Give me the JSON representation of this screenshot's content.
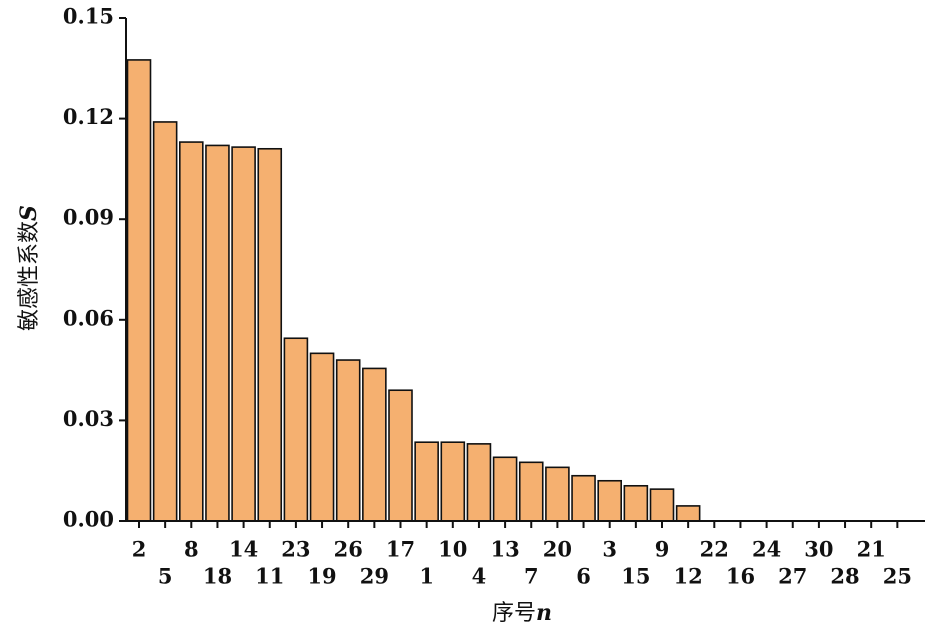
{
  "chart_data": {
    "type": "bar",
    "categories": [
      "2",
      "5",
      "8",
      "18",
      "14",
      "11",
      "23",
      "19",
      "26",
      "29",
      "17",
      "1",
      "10",
      "4",
      "13",
      "7",
      "20",
      "6",
      "3",
      "15",
      "9",
      "12",
      "22",
      "16",
      "24",
      "27",
      "30",
      "28",
      "21",
      "25"
    ],
    "values": [
      0.1375,
      0.119,
      0.113,
      0.112,
      0.1115,
      0.111,
      0.0545,
      0.05,
      0.048,
      0.0455,
      0.039,
      0.0235,
      0.0235,
      0.023,
      0.019,
      0.0175,
      0.016,
      0.0135,
      0.012,
      0.0105,
      0.0095,
      0.0045,
      0,
      0,
      0,
      0,
      0,
      0,
      0,
      0
    ],
    "ylim": [
      0,
      0.15
    ],
    "yticks": [
      "0.00",
      "0.03",
      "0.06",
      "0.09",
      "0.12",
      "0.15"
    ],
    "ytick_values": [
      0,
      0.03,
      0.06,
      0.09,
      0.12,
      0.15
    ],
    "xlabel": "序号",
    "xlabel_symbol": "n",
    "ylabel": "敏感性系数",
    "ylabel_symbol": "S",
    "grid": false,
    "colors": {
      "bar_fill": "#F5B070",
      "bar_stroke": "#111111",
      "axis": "#111111"
    }
  }
}
